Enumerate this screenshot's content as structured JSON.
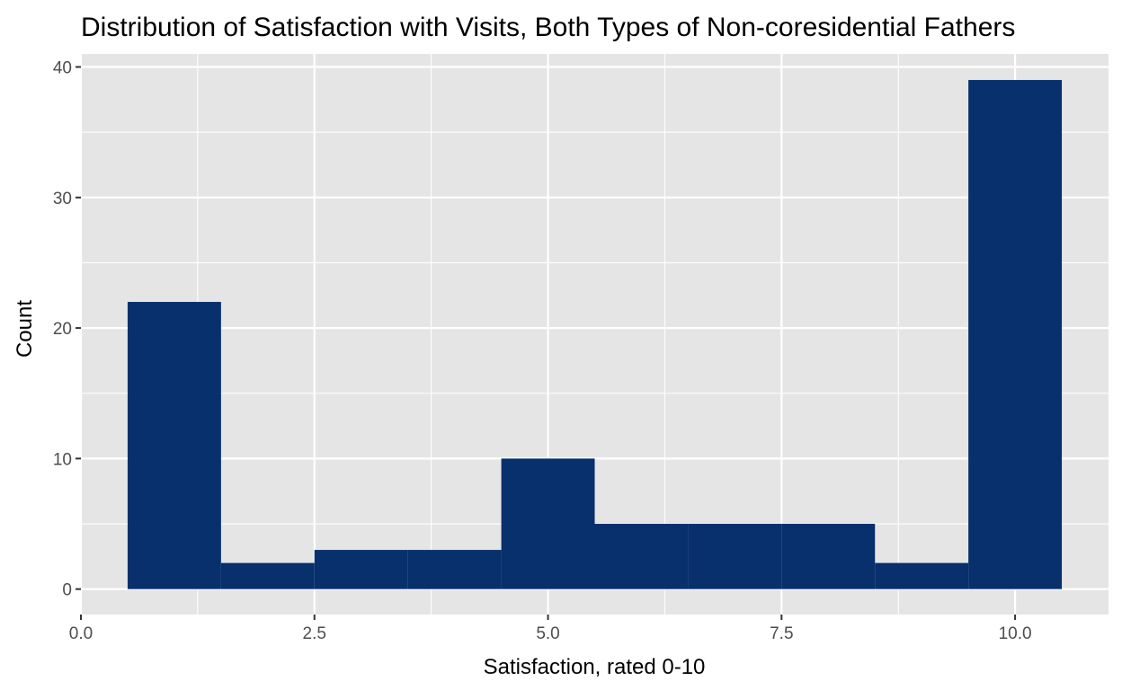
{
  "chart_data": {
    "type": "bar",
    "title": "Distribution of Satisfaction with Visits, Both Types of Non-coresidential Fathers",
    "xlabel": "Satisfaction, rated 0-10",
    "ylabel": "Count",
    "x": [
      1,
      2,
      3,
      4,
      5,
      6,
      7,
      8,
      9,
      10
    ],
    "values": [
      22,
      2,
      3,
      3,
      10,
      5,
      5,
      5,
      2,
      39
    ],
    "bin_width": 1,
    "xlim": [
      0,
      11
    ],
    "ylim": [
      -1.95,
      41
    ],
    "x_ticks": [
      0.0,
      2.5,
      5.0,
      7.5,
      10.0
    ],
    "x_tick_labels": [
      "0.0",
      "2.5",
      "5.0",
      "7.5",
      "10.0"
    ],
    "y_ticks": [
      0,
      10,
      20,
      30,
      40
    ],
    "y_tick_labels": [
      "0",
      "10",
      "20",
      "30",
      "40"
    ],
    "grid": true,
    "colors": {
      "bar_fill": "#07306c",
      "panel_background": "#e5e5e5",
      "grid_line": "#ffffff"
    }
  }
}
